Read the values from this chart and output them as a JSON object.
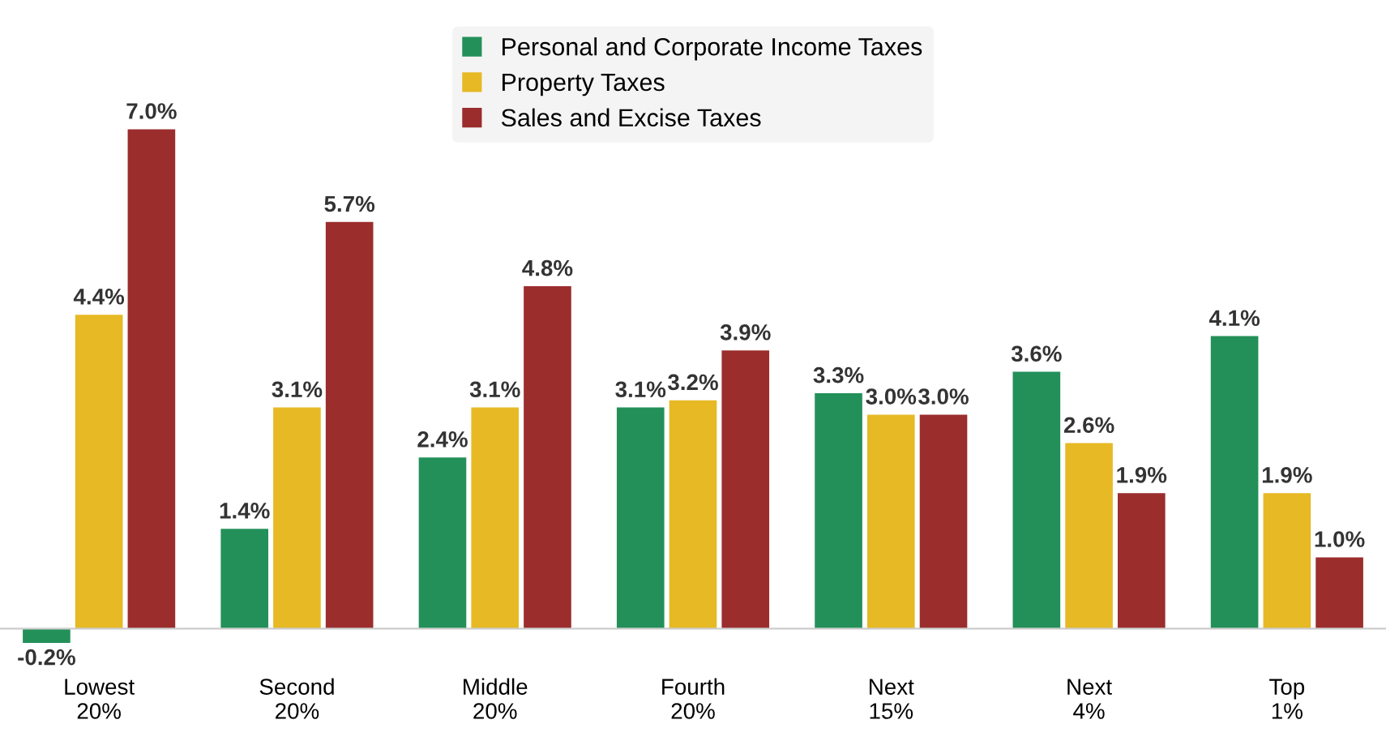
{
  "chart_data": {
    "type": "bar",
    "categories": [
      "Lowest\n20%",
      "Second\n20%",
      "Middle\n20%",
      "Fourth\n20%",
      "Next\n15%",
      "Next\n4%",
      "Top\n1%"
    ],
    "series": [
      {
        "name": "Personal and Corporate Income Taxes",
        "color": "#23905a",
        "values": [
          -0.2,
          1.4,
          2.4,
          3.1,
          3.3,
          3.6,
          4.1
        ],
        "value_labels": [
          "-0.2%",
          "1.4%",
          "2.4%",
          "3.1%",
          "3.3%",
          "3.6%",
          "4.1%"
        ]
      },
      {
        "name": "Property Taxes",
        "color": "#e6b925",
        "values": [
          4.4,
          3.1,
          3.1,
          3.2,
          3.0,
          2.6,
          1.9
        ],
        "value_labels": [
          "4.4%",
          "3.1%",
          "3.1%",
          "3.2%",
          "3.0%",
          "2.6%",
          "1.9%"
        ]
      },
      {
        "name": "Sales and Excise Taxes",
        "color": "#9b2d2d",
        "values": [
          7.0,
          5.7,
          4.8,
          3.9,
          3.0,
          1.9,
          1.0
        ],
        "value_labels": [
          "7.0%",
          "5.7%",
          "4.8%",
          "3.9%",
          "3.0%",
          "1.9%",
          "1.0%"
        ]
      }
    ],
    "legend": "top",
    "grid": false
  }
}
